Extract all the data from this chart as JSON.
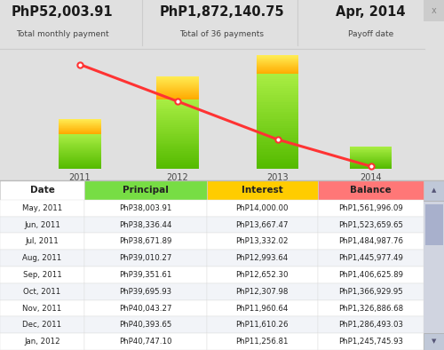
{
  "title1": "PhP52,003.91",
  "subtitle1": "Total monthly payment",
  "title2": "PhP1,872,140.75",
  "subtitle2": "Total of 36 payments",
  "title3": "Apr, 2014",
  "subtitle3": "Payoff date",
  "bar_years": [
    "2011",
    "2012",
    "2013",
    "2014"
  ],
  "bar_principal": [
    0.3,
    0.6,
    0.82,
    0.19
  ],
  "bar_interest": [
    0.13,
    0.2,
    0.16,
    0.0
  ],
  "line_values": [
    0.93,
    0.6,
    0.26,
    0.02
  ],
  "bg_color": "#e0e0e0",
  "chart_bg": "#e8e8e8",
  "header_color_date": "#ffffff",
  "header_color_principal": "#77dd44",
  "header_color_interest": "#ffcc00",
  "header_color_balance": "#ff7777",
  "col_headers": [
    "Date",
    "Principal",
    "Interest",
    "Balance"
  ],
  "table_rows": [
    [
      "May, 2011",
      "PhP38,003.91",
      "PhP14,000.00",
      "PhP1,561,996.09"
    ],
    [
      "Jun, 2011",
      "PhP38,336.44",
      "PhP13,667.47",
      "PhP1,523,659.65"
    ],
    [
      "Jul, 2011",
      "PhP38,671.89",
      "PhP13,332.02",
      "PhP1,484,987.76"
    ],
    [
      "Aug, 2011",
      "PhP39,010.27",
      "PhP12,993.64",
      "PhP1,445,977.49"
    ],
    [
      "Sep, 2011",
      "PhP39,351.61",
      "PhP12,652.30",
      "PhP1,406,625.89"
    ],
    [
      "Oct, 2011",
      "PhP39,695.93",
      "PhP12,307.98",
      "PhP1,366,929.95"
    ],
    [
      "Nov, 2011",
      "PhP40,043.27",
      "PhP11,960.64",
      "PhP1,326,886.68"
    ],
    [
      "Dec, 2011",
      "PhP40,393.65",
      "PhP11,610.26",
      "PhP1,286,493.03"
    ],
    [
      "Jan, 2012",
      "PhP40,747.10",
      "PhP11,256.81",
      "PhP1,245,745.93"
    ]
  ],
  "line_color": "#ff3333",
  "dot_color": "#ffffff",
  "dot_edge_color": "#ff3333",
  "principal_green_top": "#aaee44",
  "principal_green_bot": "#55bb00",
  "interest_yellow_top": "#ffee55",
  "interest_yellow_bot": "#ffaa00",
  "scrollbar_bg": "#d0d4e0",
  "scrollbar_thumb": "#a8b0cc",
  "scrollbar_btn": "#c0c8d8"
}
